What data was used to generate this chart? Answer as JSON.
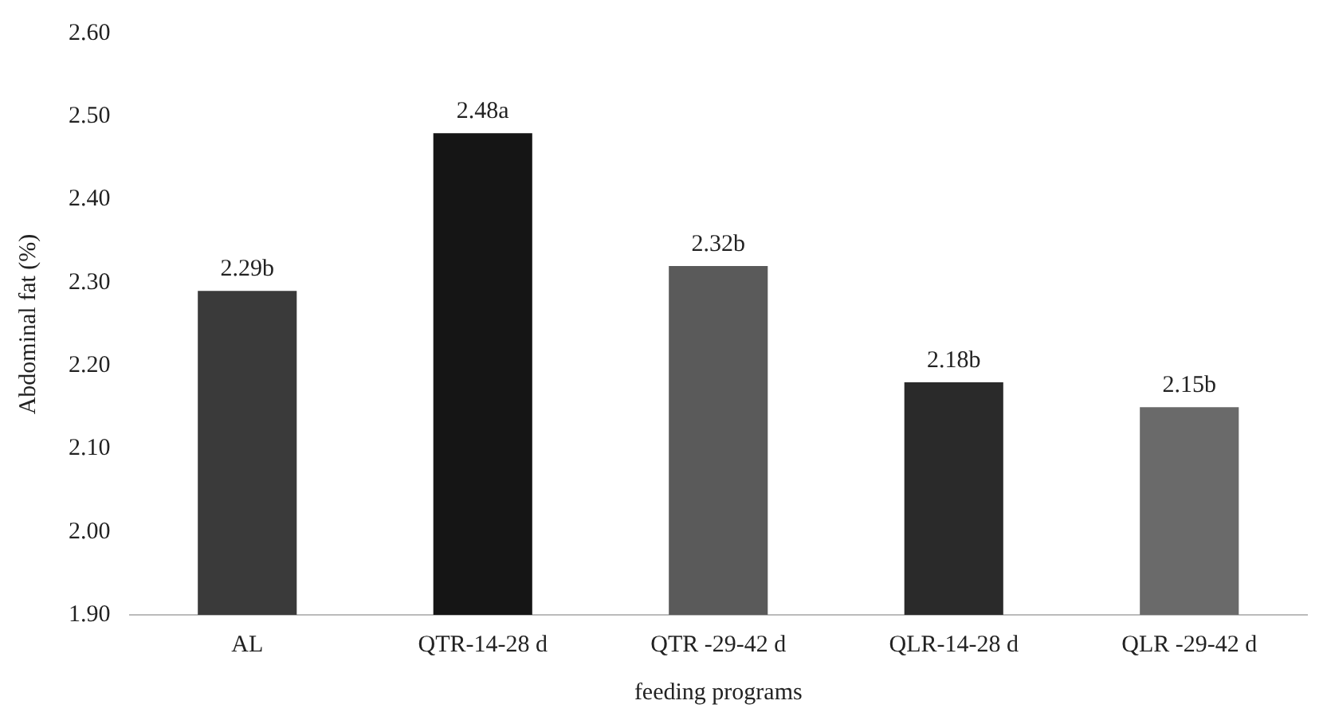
{
  "chart_data": {
    "type": "bar",
    "xlabel": "feeding programs",
    "ylabel": "Abdominal fat (%)",
    "categories": [
      "AL",
      "QTR-14-28 d",
      "QTR -29-42 d",
      "QLR-14-28 d",
      "QLR -29-42 d"
    ],
    "values": [
      2.29,
      2.48,
      2.32,
      2.18,
      2.15
    ],
    "colors": [
      "#3a3a3a",
      "#151515",
      "#5a5a5a",
      "#2a2a2a",
      "#6a6a6a"
    ],
    "value_labels": [
      "2.29b",
      "2.48a",
      "2.32b",
      "2.18b",
      "2.15b"
    ],
    "ylim": [
      1.9,
      2.6
    ],
    "yticks": [
      {
        "value": 1.9,
        "label": "1.90"
      },
      {
        "value": 2.0,
        "label": "2.00"
      },
      {
        "value": 2.1,
        "label": "2.10"
      },
      {
        "value": 2.2,
        "label": "2.20"
      },
      {
        "value": 2.3,
        "label": "2.30"
      },
      {
        "value": 2.4,
        "label": "2.40"
      },
      {
        "value": 2.5,
        "label": "2.50"
      },
      {
        "value": 2.6,
        "label": "2.60"
      }
    ],
    "grid": false,
    "legend": false
  }
}
